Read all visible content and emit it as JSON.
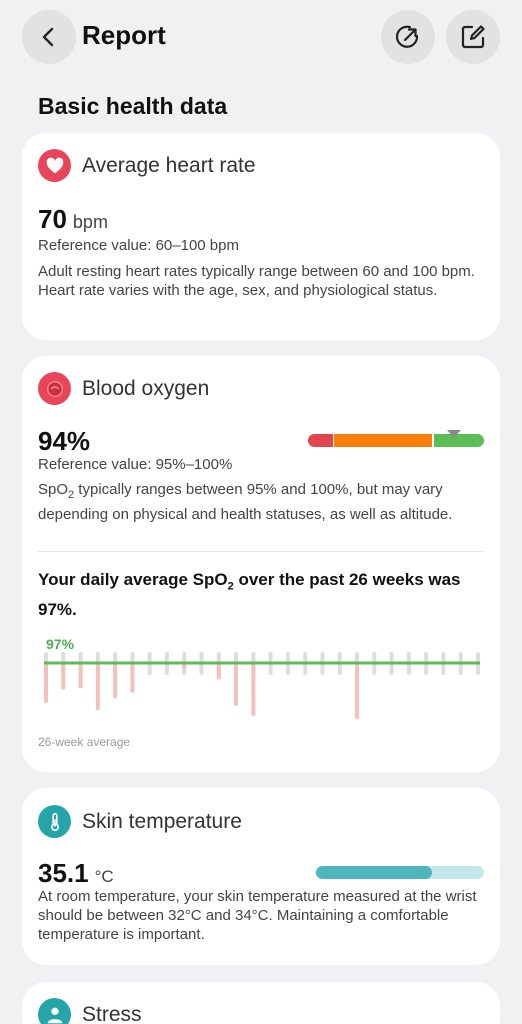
{
  "header": {
    "title": "Report",
    "back_icon": "chevron-left-icon",
    "share_icon": "share-icon",
    "edit_icon": "edit-icon"
  },
  "section_title": "Basic health data",
  "heart_rate": {
    "title": "Average heart rate",
    "icon": "heart-icon",
    "value": "70",
    "unit": "bpm",
    "reference": "Reference value: 60–100 bpm",
    "description": "Adult resting heart rates typically range between 60 and 100 bpm. Heart rate varies with the age, sex, and physiological status.",
    "icon_color": "#e8455a"
  },
  "blood_oxygen": {
    "title": "Blood oxygen",
    "icon": "blood-drop-icon",
    "value": "94%",
    "reference": "Reference value: 95%–100%",
    "description_pre": "SpO",
    "description_sub": "2",
    "description_post": " typically ranges between 95% and 100%, but may vary depending on physical and health statuses, as well as altitude.",
    "summary_pre": "Your daily average SpO",
    "summary_sub": "2",
    "summary_post": " over the past 26 weeks was 97%.",
    "scale_colors": {
      "low": "#e0474c",
      "mid": "#fb7d0b",
      "high": "#5bbd55"
    },
    "chart_avg_label": "97%",
    "chart_caption": "26-week average",
    "chart_data": {
      "type": "bar",
      "average": 97,
      "weeks": 26,
      "dips": [
        0.26,
        0.17,
        0.16,
        0.31,
        0.23,
        0.19,
        0,
        0,
        0.03,
        0,
        0.1,
        0.28,
        0.35,
        0,
        0,
        0,
        0,
        0,
        0.37,
        0,
        0,
        0,
        0,
        0,
        0,
        0
      ],
      "avg_color": "#5bbd55",
      "dip_color": "#f4c1ba",
      "tick_color": "#dddddd"
    }
  },
  "skin_temperature": {
    "title": "Skin temperature",
    "icon": "thermometer-icon",
    "value": "35.1",
    "unit": "°C",
    "description": "At room temperature, your skin temperature measured at the wrist should be between 32°C and 34°C. Maintaining a comfortable temperature is important.",
    "level": 0.69,
    "icon_color": "#25a5a8"
  },
  "stress": {
    "title": "Stress",
    "icon": "stress-icon",
    "icon_color": "#25a5a8"
  }
}
